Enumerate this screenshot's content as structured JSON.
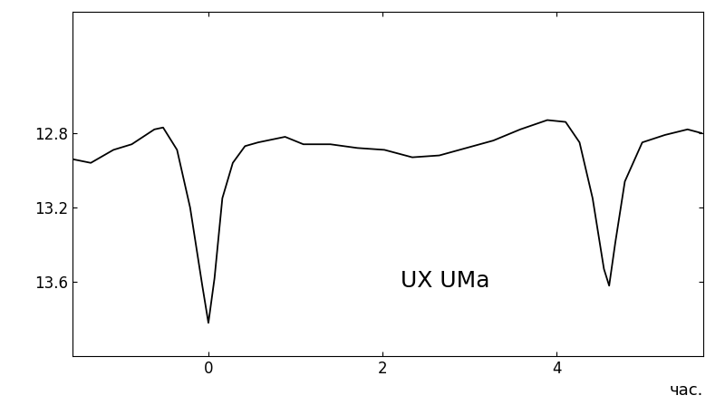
{
  "chart_data": {
    "type": "line",
    "annotation": "UX UMa",
    "x_label": "час.",
    "x": [
      -1.56,
      -1.35,
      -1.09,
      -0.88,
      -0.62,
      -0.52,
      -0.36,
      -0.21,
      -0.07,
      0.0,
      0.07,
      0.16,
      0.28,
      0.42,
      0.57,
      0.88,
      1.09,
      1.4,
      1.71,
      2.02,
      2.34,
      2.65,
      2.96,
      3.27,
      3.58,
      3.89,
      4.1,
      4.26,
      4.41,
      4.54,
      4.6,
      4.67,
      4.78,
      4.98,
      5.24,
      5.5,
      5.66
    ],
    "values": [
      12.94,
      12.96,
      12.89,
      12.86,
      12.78,
      12.77,
      12.89,
      13.2,
      13.62,
      13.82,
      13.58,
      13.15,
      12.96,
      12.87,
      12.85,
      12.82,
      12.86,
      12.86,
      12.88,
      12.89,
      12.93,
      12.92,
      12.88,
      12.84,
      12.78,
      12.73,
      12.74,
      12.85,
      13.15,
      13.53,
      13.62,
      13.39,
      13.06,
      12.85,
      12.81,
      12.78,
      12.8
    ],
    "color": "#000000",
    "xlim": [
      -1.56,
      5.68
    ],
    "xticks": [
      0,
      2,
      4
    ],
    "ylim": [
      14.0,
      12.15
    ],
    "yticks": [
      12.8,
      13.2,
      13.6
    ],
    "grid": false
  }
}
